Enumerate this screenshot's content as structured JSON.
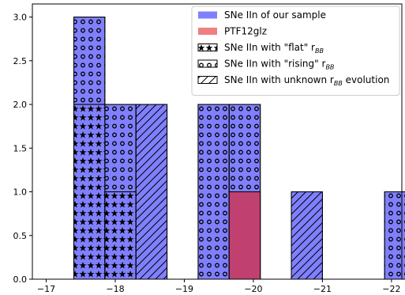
{
  "chart_data": {
    "type": "bar",
    "xlim": [
      -16.8,
      -22.15
    ],
    "ylim": [
      0,
      3.15
    ],
    "x_ticks": [
      -17,
      -18,
      -19,
      -20,
      -21,
      -22
    ],
    "x_tick_labels": [
      "−17",
      "−18",
      "−19",
      "−20",
      "−21",
      "−22"
    ],
    "y_ticks": [
      0.0,
      0.5,
      1.0,
      1.5,
      2.0,
      2.5,
      3.0
    ],
    "y_tick_labels": [
      "0.0",
      "0.5",
      "1.0",
      "1.5",
      "2.0",
      "2.5",
      "3.0"
    ],
    "bin_width": 0.45,
    "grid": false,
    "legend_position": "top-right",
    "series": [
      {
        "name": "SNe IIn of our sample",
        "color": "#8080ff",
        "hatch": "circles",
        "bins": [
          {
            "left": -17.4,
            "value": 3
          },
          {
            "left": -17.85,
            "value": 2
          },
          {
            "left": -19.2,
            "value": 2
          },
          {
            "left": -19.65,
            "value": 2
          },
          {
            "left": -21.9,
            "value": 1
          }
        ]
      },
      {
        "name": "PTF12glz",
        "color": "#c04070",
        "hatch": "none",
        "bins": [
          {
            "left": -19.65,
            "value": 1
          }
        ]
      },
      {
        "name": "SNe IIn with \"flat\" r_BB",
        "color": "#8080ff",
        "hatch": "stars",
        "bins": [
          {
            "left": -17.4,
            "value": 2
          },
          {
            "left": -17.85,
            "value": 1
          }
        ]
      },
      {
        "name": "SNe IIn with unknown r_BB evolution",
        "color": "#8080ff",
        "hatch": "diagonal",
        "bins": [
          {
            "left": -18.3,
            "value": 2
          },
          {
            "left": -20.55,
            "value": 1
          }
        ]
      }
    ]
  },
  "legend": {
    "items": [
      {
        "key": "sample",
        "swatch": "#8080ff",
        "hatch": "none",
        "text": "SNe IIn of our sample",
        "sub": ""
      },
      {
        "key": "ptf",
        "swatch": "#f08080",
        "hatch": "none",
        "text": "PTF12glz",
        "sub": ""
      },
      {
        "key": "flat",
        "swatch": "#ffffff",
        "hatch": "stars",
        "text": "SNe IIn with \"flat\" r",
        "sub": "BB"
      },
      {
        "key": "rising",
        "swatch": "#ffffff",
        "hatch": "circles",
        "text": "SNe IIn with \"rising\" r",
        "sub": "BB"
      },
      {
        "key": "unknown",
        "swatch": "#ffffff",
        "hatch": "diagonal",
        "text": "SNe IIn with unknown r",
        "sub": "BB",
        "suffix": " evolution"
      }
    ]
  }
}
